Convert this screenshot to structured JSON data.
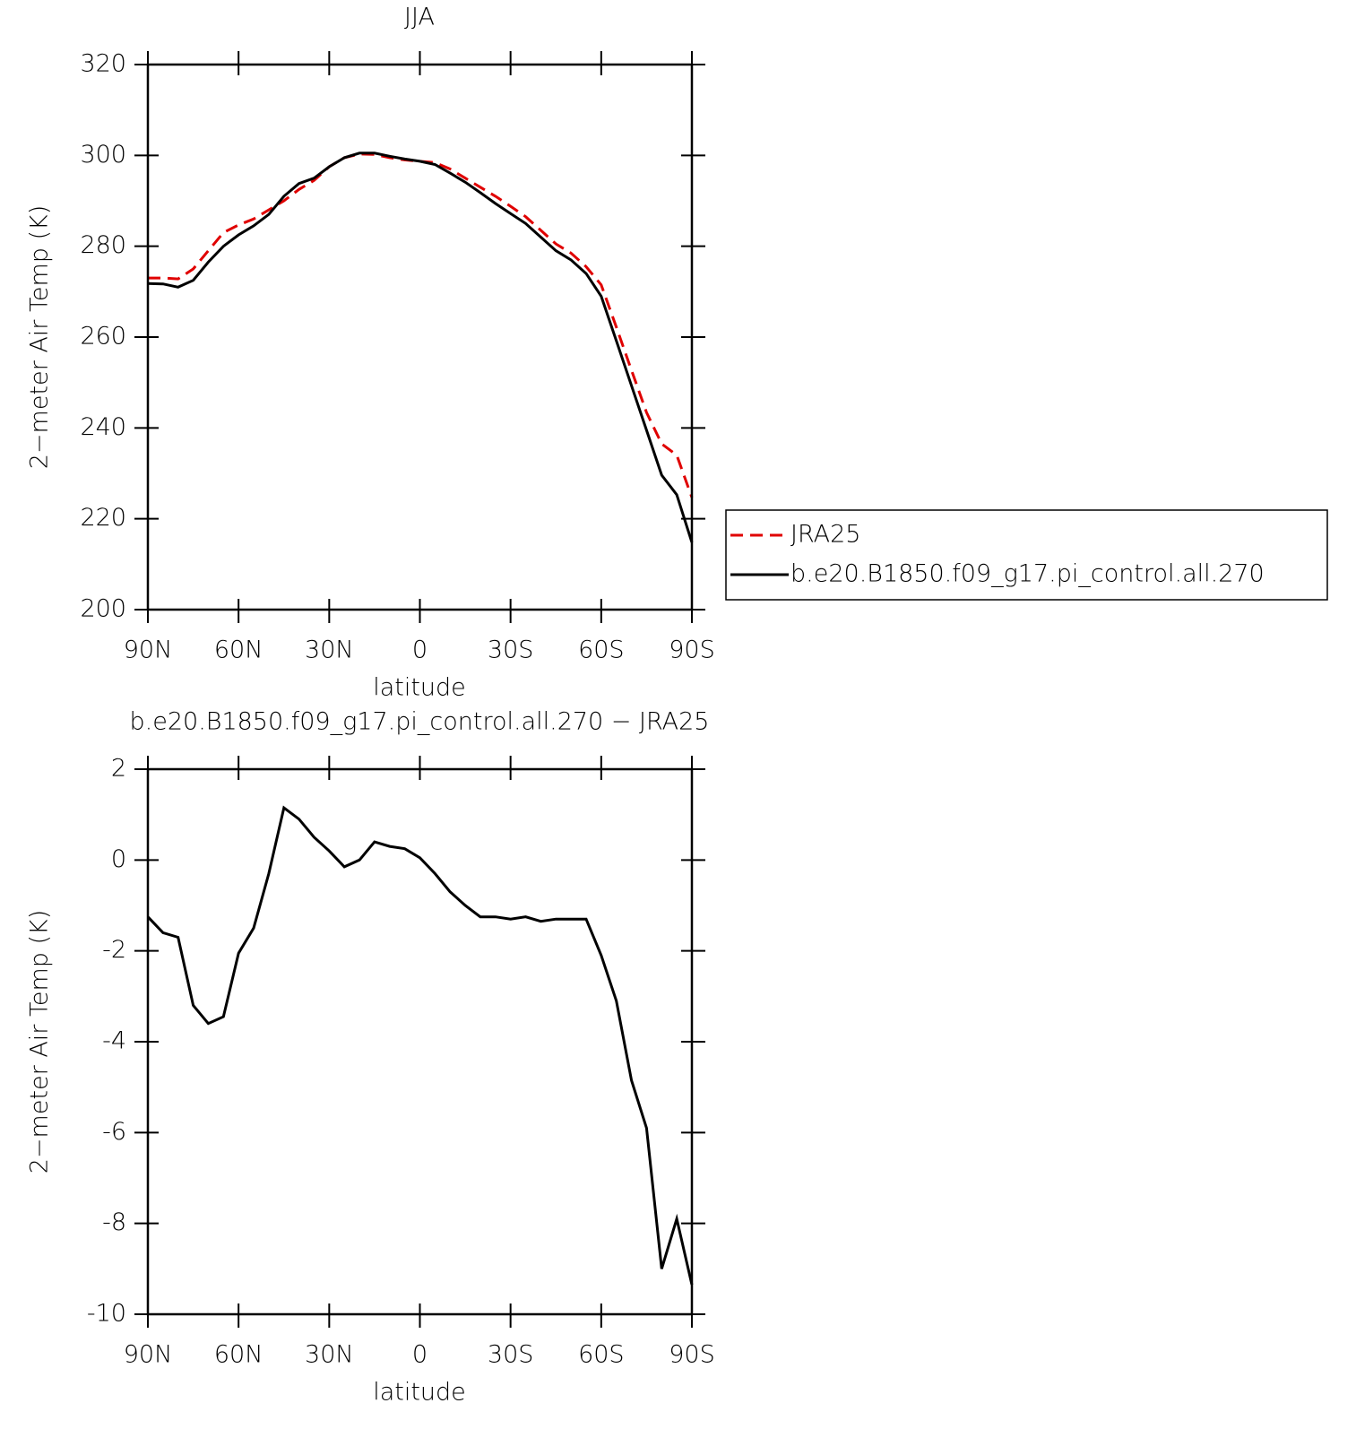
{
  "chart_data": [
    {
      "type": "line",
      "title": "JJA",
      "x_label": "latitude",
      "y_label": "2−meter Air Temp (K)",
      "x": [
        90,
        85,
        80,
        75,
        70,
        65,
        60,
        55,
        50,
        45,
        40,
        35,
        30,
        25,
        20,
        15,
        10,
        5,
        0,
        -5,
        -10,
        -15,
        -20,
        -25,
        -30,
        -35,
        -40,
        -45,
        -50,
        -55,
        -60,
        -65,
        -70,
        -75,
        -80,
        -85,
        -90
      ],
      "xlim": [
        90,
        -90
      ],
      "xticks": [
        {
          "value": 90,
          "label": "90N"
        },
        {
          "value": 60,
          "label": "60N"
        },
        {
          "value": 30,
          "label": "30N"
        },
        0,
        {
          "value": -30,
          "label": "30S"
        },
        {
          "value": -60,
          "label": "60S"
        },
        {
          "value": -90,
          "label": "90S"
        }
      ],
      "ylim": [
        200,
        320
      ],
      "yticks": [
        200,
        220,
        240,
        260,
        280,
        300,
        320
      ],
      "legend": true,
      "series": [
        {
          "name": "JRA25",
          "color": "#e00000",
          "dash": true,
          "values": [
            273,
            273,
            272.8,
            275,
            279,
            283,
            284.7,
            286,
            288,
            290,
            292.5,
            294.5,
            297.5,
            299.5,
            300.3,
            300.2,
            299.5,
            299,
            298.7,
            298.4,
            297,
            295,
            293,
            291,
            288.8,
            286.5,
            283.5,
            280.5,
            278.5,
            275.5,
            271.5,
            262.2,
            252.7,
            243.4,
            236.5,
            234,
            224.7
          ]
        },
        {
          "name": "b.e20.B1850.f09_g17.pi_control.all.270",
          "color": "#000000",
          "dash": false,
          "values": [
            271.8,
            271.7,
            271,
            272.5,
            276.5,
            280,
            282.5,
            284.5,
            287,
            291,
            293.8,
            295,
            297.5,
            299.5,
            300.5,
            300.5,
            299.8,
            299.2,
            298.7,
            298,
            296.1,
            294.1,
            291.8,
            289.4,
            287.2,
            285,
            282,
            279,
            277,
            274,
            269,
            259.2,
            249.3,
            239.5,
            229.6,
            225.3,
            214.8
          ]
        }
      ]
    },
    {
      "type": "line",
      "title": "b.e20.B1850.f09_g17.pi_control.all.270 − JRA25",
      "x_label": "latitude",
      "y_label": "2−meter Air Temp (K)",
      "x": [
        90,
        85,
        80,
        75,
        70,
        65,
        60,
        55,
        50,
        45,
        40,
        35,
        30,
        25,
        20,
        15,
        10,
        5,
        0,
        -5,
        -10,
        -15,
        -20,
        -25,
        -30,
        -35,
        -40,
        -45,
        -50,
        -55,
        -60,
        -65,
        -70,
        -75,
        -80,
        -85,
        -90
      ],
      "xlim": [
        90,
        -90
      ],
      "xticks": [
        {
          "value": 90,
          "label": "90N"
        },
        {
          "value": 60,
          "label": "60N"
        },
        {
          "value": 30,
          "label": "30N"
        },
        0,
        {
          "value": -30,
          "label": "30S"
        },
        {
          "value": -60,
          "label": "60S"
        },
        {
          "value": -90,
          "label": "90S"
        }
      ],
      "ylim": [
        -10,
        2
      ],
      "yticks": [
        -10,
        -8,
        -6,
        -4,
        -2,
        0,
        2
      ],
      "legend": false,
      "series": [
        {
          "color": "#000000",
          "dash": false,
          "values": [
            -1.25,
            -1.6,
            -1.7,
            -3.2,
            -3.6,
            -3.45,
            -2.05,
            -1.5,
            -0.3,
            1.15,
            0.9,
            0.5,
            0.2,
            -0.15,
            0,
            0.4,
            0.3,
            0.25,
            0.05,
            -0.3,
            -0.7,
            -1,
            -1.25,
            -1.25,
            -1.3,
            -1.25,
            -1.35,
            -1.3,
            -1.3,
            -1.3,
            -2.1,
            -3.1,
            -4.85,
            -5.9,
            -9,
            -7.9,
            -9.35
          ]
        }
      ]
    }
  ]
}
